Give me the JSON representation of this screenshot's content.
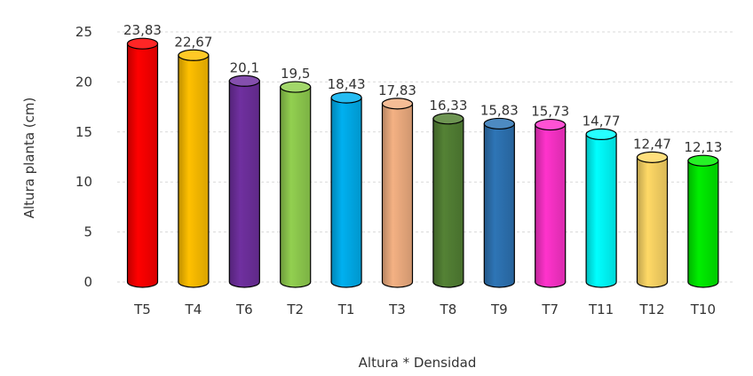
{
  "chart_data": {
    "type": "bar",
    "style": "3d-cylinder",
    "categories": [
      "T5",
      "T4",
      "T6",
      "T2",
      "T1",
      "T3",
      "T8",
      "T9",
      "T7",
      "T11",
      "T12",
      "T10"
    ],
    "values": [
      23.83,
      22.67,
      20.1,
      19.5,
      18.43,
      17.83,
      16.33,
      15.83,
      15.73,
      14.77,
      12.47,
      12.13
    ],
    "data_labels": [
      "23,83",
      "22,67",
      "20,1",
      "19,5",
      "18,43",
      "17,83",
      "16,33",
      "15,83",
      "15,73",
      "14,77",
      "12,47",
      "12,13"
    ],
    "colors": [
      "#ff0000",
      "#ffc000",
      "#7030a0",
      "#92d050",
      "#00b0f0",
      "#f4b183",
      "#548235",
      "#2e75b6",
      "#ff33cc",
      "#00ffff",
      "#ffd966",
      "#00ee00"
    ],
    "title": "",
    "xlabel": "Altura * Densidad",
    "ylabel": "Altura planta (cm)",
    "ylim": [
      0,
      25
    ],
    "yticks": [
      "0",
      "5",
      "10",
      "15",
      "20",
      "25"
    ],
    "grid": true,
    "legend": "none"
  }
}
